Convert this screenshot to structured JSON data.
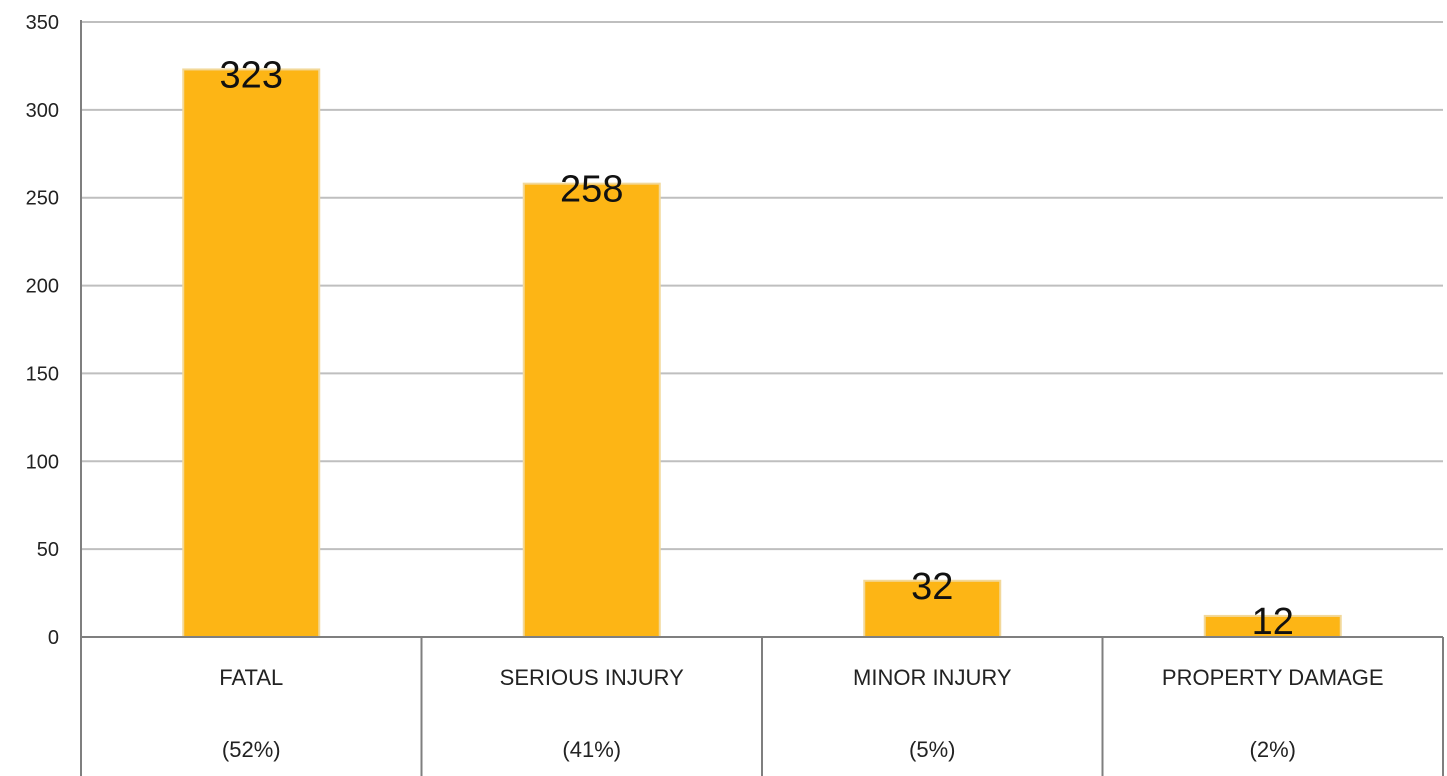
{
  "chart_data": {
    "type": "bar",
    "categories": [
      "FATAL",
      "SERIOUS INJURY",
      "MINOR INJURY",
      "PROPERTY DAMAGE"
    ],
    "category_percents": [
      "(52%)",
      "(41%)",
      "(5%)",
      "(2%)"
    ],
    "values": [
      323,
      258,
      32,
      12
    ],
    "data_labels": [
      "323",
      "258",
      "32",
      "12"
    ],
    "ylim": [
      0,
      350
    ],
    "yticks": [
      0,
      50,
      100,
      150,
      200,
      250,
      300,
      350
    ],
    "ytick_labels": [
      "0",
      "50",
      "100",
      "150",
      "200",
      "250",
      "300",
      "350"
    ],
    "grid": true,
    "title": "",
    "xlabel": "",
    "ylabel": ""
  },
  "colors": {
    "bar": "#FDB515",
    "bar_edge": "#F2D89A",
    "grid": "#BFBFBF",
    "axis": "#7F7F7F",
    "text": "#222222"
  }
}
